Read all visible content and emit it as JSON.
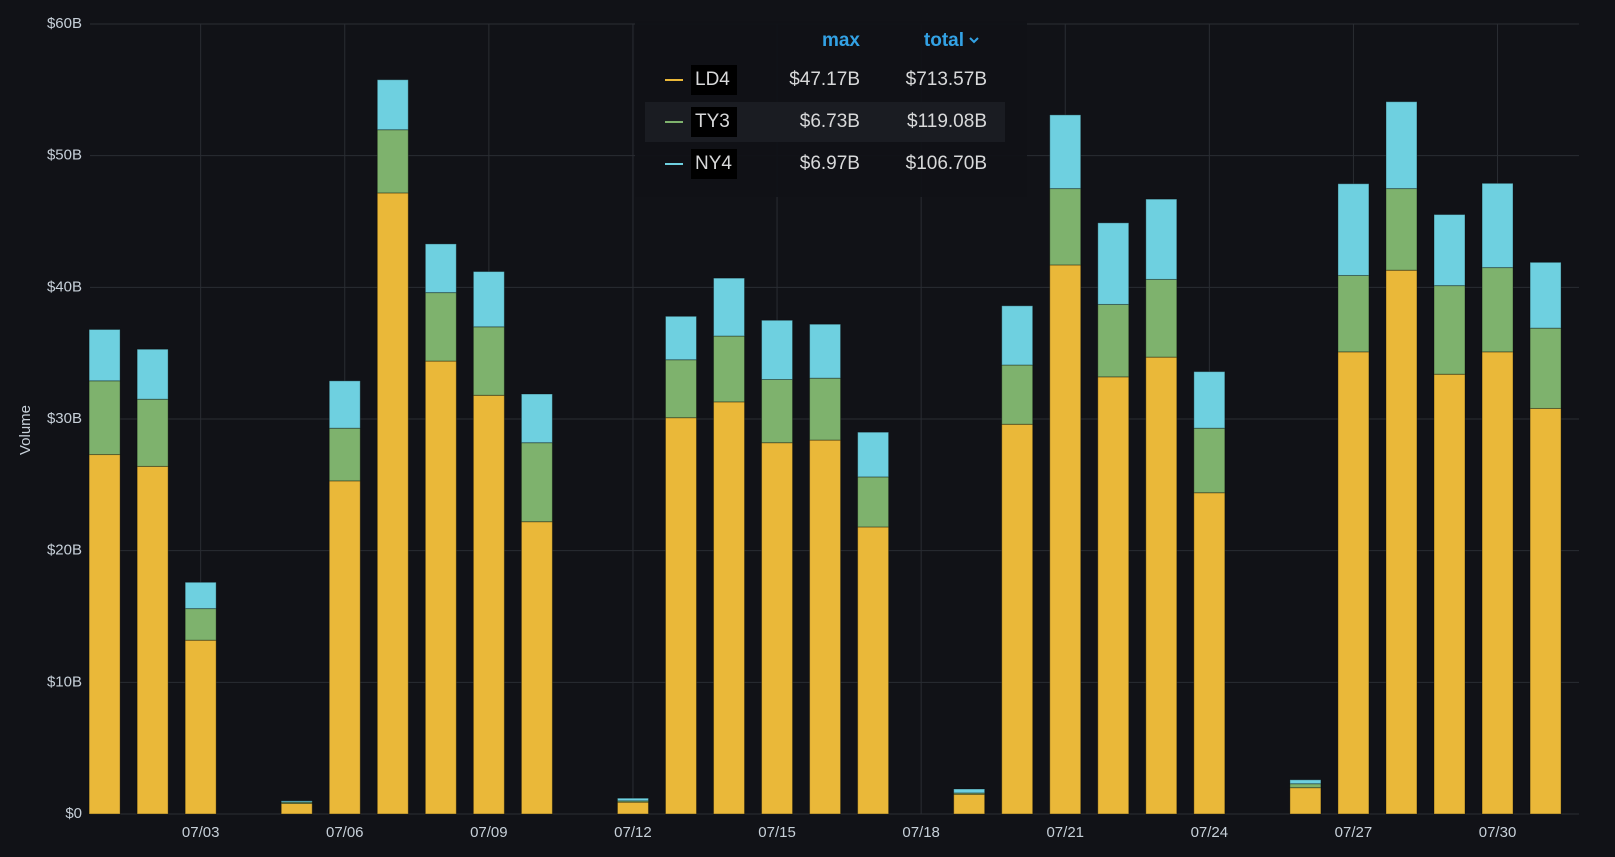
{
  "chart_data": {
    "type": "stacked-bar",
    "y_label": "Volume",
    "categories": [
      null,
      null,
      "07/03",
      null,
      null,
      "07/06",
      null,
      null,
      "07/09",
      null,
      null,
      "07/12",
      null,
      null,
      "07/15",
      null,
      null,
      "07/18",
      null,
      null,
      "07/21",
      null,
      null,
      "07/24",
      null,
      null,
      "07/27",
      null,
      null,
      "07/30",
      null
    ],
    "series": [
      {
        "name": "LD4",
        "color": "#eab839",
        "legend_values": [
          "$47.17B",
          "$713.57B"
        ],
        "values": [
          27.3,
          26.4,
          13.2,
          null,
          0.8,
          25.3,
          47.17,
          34.4,
          31.8,
          22.2,
          null,
          0.9,
          30.1,
          31.3,
          28.2,
          28.4,
          21.8,
          null,
          1.5,
          29.6,
          41.7,
          33.2,
          34.7,
          24.4,
          null,
          2.0,
          35.1,
          41.3,
          33.4,
          35.1,
          30.8
        ]
      },
      {
        "name": "TY3",
        "color": "#7eb26d",
        "legend_values": [
          "$6.73B",
          "$119.08B"
        ],
        "values": [
          5.6,
          5.1,
          2.4,
          null,
          0.1,
          4.0,
          4.8,
          5.2,
          5.2,
          6.0,
          null,
          0.1,
          4.4,
          5.0,
          4.8,
          4.7,
          3.8,
          null,
          0.1,
          4.5,
          5.8,
          5.5,
          5.9,
          4.9,
          null,
          0.3,
          5.8,
          6.2,
          6.73,
          6.4,
          6.1
        ]
      },
      {
        "name": "NY4",
        "color": "#6ed0e0",
        "legend_values": [
          "$6.97B",
          "$106.70B"
        ],
        "values": [
          3.9,
          3.8,
          2.0,
          null,
          0.1,
          3.6,
          3.8,
          3.7,
          4.2,
          3.7,
          null,
          0.2,
          3.3,
          4.4,
          4.5,
          4.1,
          3.4,
          null,
          0.3,
          4.5,
          5.6,
          6.2,
          6.1,
          4.3,
          null,
          0.3,
          6.97,
          6.6,
          5.4,
          6.4,
          5.0
        ]
      }
    ],
    "legend_columns": [
      "max",
      "total"
    ],
    "ylim": [
      0,
      60
    ],
    "yticks": [
      {
        "value": 0,
        "label": "$0"
      },
      {
        "value": 10,
        "label": "$10B"
      },
      {
        "value": 20,
        "label": "$20B"
      },
      {
        "value": 30,
        "label": "$30B"
      },
      {
        "value": 40,
        "label": "$40B"
      },
      {
        "value": 50,
        "label": "$50B"
      },
      {
        "value": 60,
        "label": "$60B"
      }
    ],
    "grid": true
  }
}
